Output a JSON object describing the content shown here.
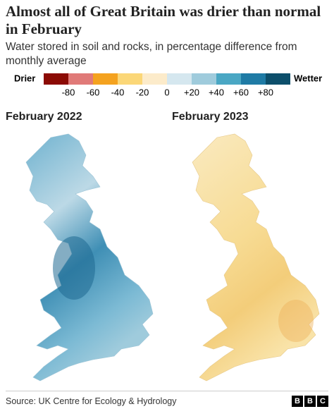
{
  "header": {
    "title": "Almost all of Great Britain was drier than normal in February",
    "subtitle": "Water stored in soil and rocks, in percentage difference from monthly average"
  },
  "legend": {
    "low_label": "Drier",
    "high_label": "Wetter",
    "colors": [
      "#8b0b04",
      "#e07a78",
      "#f4a21f",
      "#fbd778",
      "#fcebca",
      "#d5e7ef",
      "#9fcbdc",
      "#4aa7c4",
      "#1f7ba5",
      "#0d4f6b"
    ],
    "ticks": [
      -80,
      -60,
      -40,
      -20,
      0,
      {
        "value": 20,
        "label": "+20"
      },
      {
        "value": 40,
        "label": "+40"
      },
      {
        "value": 60,
        "label": "+60"
      },
      {
        "value": 80,
        "label": "+80"
      }
    ]
  },
  "maps": [
    {
      "title": "February 2022"
    },
    {
      "title": "February 2023"
    }
  ],
  "footer": {
    "source": "Source: UK Centre for Ecology & Hydrology",
    "logo": "BBC"
  }
}
